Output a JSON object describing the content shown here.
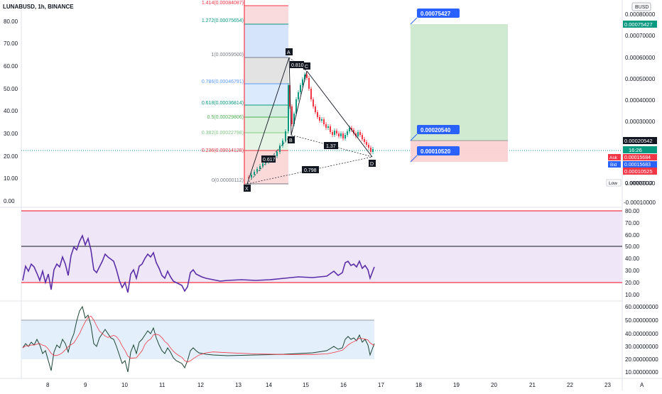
{
  "header": {
    "symbol_title": "LUNABUSD, 1h, BINANCE",
    "currency_badge": "BUSD"
  },
  "colors": {
    "rsi_line": "#5b2fa8",
    "ema_line": "#f23645",
    "fib_red": "#f23645",
    "target_green": "#089981",
    "stop_red": "#f23645",
    "tag_blue": "#2962ff"
  },
  "left_axis": {
    "labels": [
      "80.00",
      "70.00",
      "60.00",
      "50.00",
      "40.00",
      "30.00",
      "20.00",
      "10.00",
      "0.00"
    ]
  },
  "right_axis": {
    "price_labels": [
      "0.00080000",
      "0.00070000",
      "0.00060000",
      "0.00050000",
      "0.00040000",
      "0.00030000",
      "0.00010000",
      "0.00000000",
      "-0.00010000"
    ],
    "rsi_labels": [
      "80.00",
      "70.00",
      "60.00",
      "50.00",
      "40.00",
      "30.00",
      "20.00",
      "10.00"
    ],
    "osc_labels": [
      "60.00000000",
      "50.00000000",
      "40.00000000",
      "30.00000000",
      "20.00000000",
      "10.00000000"
    ],
    "target_price": "0.00075427",
    "last_price": "0.00020542",
    "countdown": "16:26",
    "ask_label": "Ask",
    "ask_price": "0.00015684",
    "bid_label": "Bid",
    "bid_price": "0.00015683",
    "stop_price": "0.00010525",
    "low_label": "Low",
    "low_price": "0.00000112"
  },
  "time_axis": {
    "labels": [
      "8",
      "9",
      "10",
      "11",
      "12",
      "13",
      "14",
      "15",
      "16",
      "17",
      "18",
      "19",
      "20",
      "21",
      "22",
      "23"
    ],
    "auto_button": "A"
  },
  "fib_levels": [
    {
      "label": "1.414(0.00084087)",
      "color": "#f23645"
    },
    {
      "label": "1.272(0.00075654)",
      "color": "#089981"
    },
    {
      "label": "1(0.00059500)",
      "color": "#787b86"
    },
    {
      "label": "0.786(0.00046791)",
      "color": "#5b9cf6"
    },
    {
      "label": "0.618(0.00036814)",
      "color": "#089981"
    },
    {
      "label": "0.5(0.00029806)",
      "color": "#4caf50"
    },
    {
      "label": "0.382(0.00022798)",
      "color": "#81c784"
    },
    {
      "label": "0.236(0.00014128)",
      "color": "#f23645"
    },
    {
      "label": "0(0.00000112)",
      "color": "#787b86"
    }
  ],
  "pattern": {
    "x": "X",
    "a": "A",
    "b": "B",
    "c": "C",
    "d": "D",
    "ab_ratio": "0.617",
    "bc_ratio": "0.810",
    "cd_ratio": "1.37",
    "xd_ratio": "0.798"
  },
  "position_tags": {
    "target": "0.00075427",
    "entry": "0.00020540",
    "stop": "0.00010520"
  }
}
